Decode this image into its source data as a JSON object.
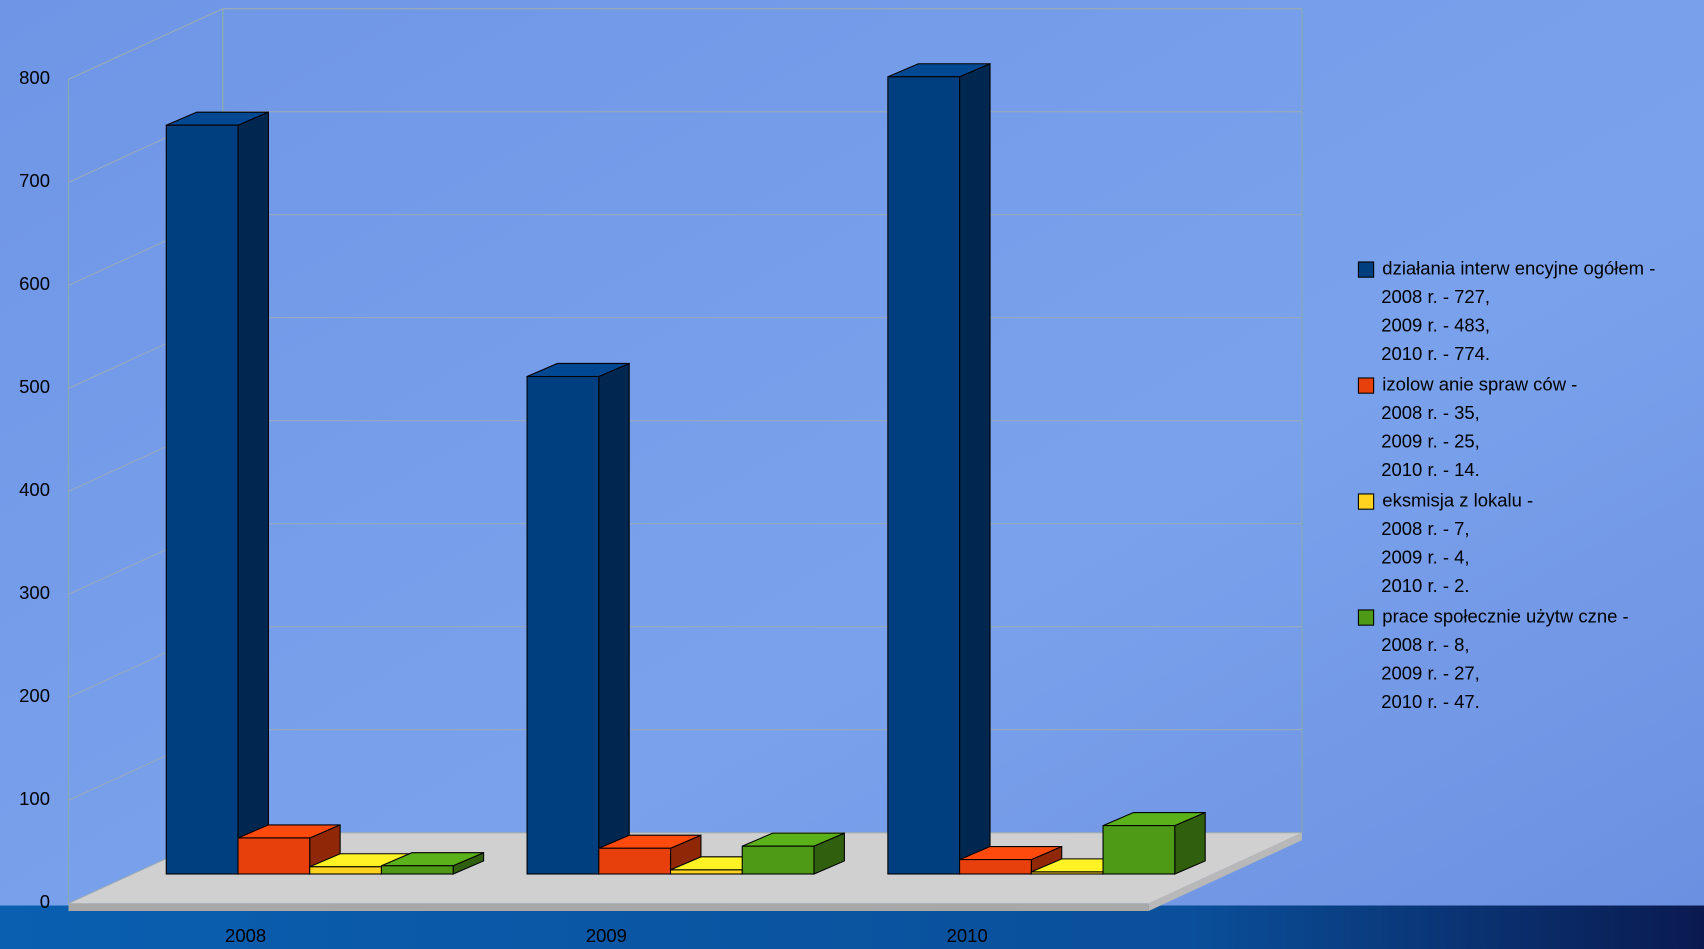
{
  "chart_data": {
    "type": "bar3d",
    "categories": [
      "2008",
      "2009",
      "2010"
    ],
    "series": [
      {
        "name": "działania interw encyjne ogółem -",
        "color": "#003f7f",
        "values": [
          727,
          483,
          774
        ],
        "value_labels": [
          "2008 r. - 727,",
          "2009 r. - 483,",
          "2010 r. - 774."
        ]
      },
      {
        "name": "izolow anie spraw ców  -",
        "color": "#e8400c",
        "values": [
          35,
          25,
          14
        ],
        "value_labels": [
          "2008 r.  -  35,",
          "2009 r.  -  25,",
          "2010 r.  -  14."
        ]
      },
      {
        "name": "eksmisja z lokalu  -",
        "color": "#ffd320",
        "values": [
          7,
          4,
          2
        ],
        "value_labels": [
          "2008 r.  - 7,",
          "2009 r.  - 4,",
          "2010 r.  -  2."
        ]
      },
      {
        "name": "prace społecznie użytw czne  -",
        "color": "#4e9a16",
        "values": [
          8,
          27,
          47
        ],
        "value_labels": [
          "2008 r.  -  8,",
          "2009 r.  -  27,",
          "2010 r.  -  47."
        ]
      }
    ],
    "ylim": [
      0,
      800
    ],
    "yticks": [
      0,
      100,
      200,
      300,
      400,
      500,
      600,
      700,
      800
    ],
    "grid": true,
    "legend": "right"
  }
}
